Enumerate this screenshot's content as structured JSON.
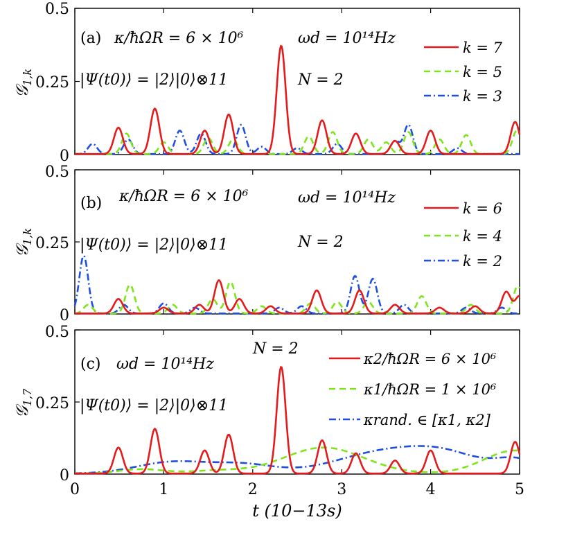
{
  "colors": {
    "red": "#e41a1c",
    "green": "#7ee51a",
    "blue": "#1f4fe0"
  },
  "x_axis": {
    "label": "t (10^{-13}s)",
    "label_text": "t (10−13s)",
    "ticks": [
      "0",
      "1",
      "2",
      "3",
      "4",
      "5"
    ],
    "range": [
      0,
      5
    ]
  },
  "chart_data": [
    {
      "type": "line",
      "panel": "a",
      "ylabel": "G1,k",
      "ylim": [
        0,
        0.5
      ],
      "yticks": [
        "0",
        "0.25",
        "0.5"
      ],
      "annotations": [
        "(a)",
        "κ/ħΩR = 6 × 10⁶",
        "ωd = 10¹⁴Hz",
        "|Ψ(t0)⟩ = |2⟩|0⟩⊗11",
        "N = 2"
      ],
      "legend": [
        "k = 7",
        "k = 5",
        "k = 3"
      ],
      "series": [
        {
          "name": "k = 7",
          "color": "#e41a1c",
          "style": "solid",
          "peaks": [
            [
              0.49,
              0.09
            ],
            [
              0.9,
              0.155
            ],
            [
              1.46,
              0.08
            ],
            [
              1.73,
              0.135
            ],
            [
              2.32,
              0.37
            ],
            [
              2.78,
              0.115
            ],
            [
              3.16,
              0.07
            ],
            [
              3.6,
              0.045
            ],
            [
              4.0,
              0.08
            ],
            [
              4.95,
              0.11
            ]
          ]
        },
        {
          "name": "k = 5",
          "color": "#7ee51a",
          "style": "dashed",
          "peaks": [
            [
              0.58,
              0.07
            ],
            [
              1.0,
              0.04
            ],
            [
              1.5,
              0.055
            ],
            [
              1.78,
              0.05
            ],
            [
              2.63,
              0.06
            ],
            [
              2.9,
              0.075
            ],
            [
              3.3,
              0.05
            ],
            [
              3.5,
              0.04
            ],
            [
              3.75,
              0.075
            ],
            [
              4.1,
              0.05
            ],
            [
              4.4,
              0.065
            ],
            [
              4.97,
              0.08
            ]
          ]
        },
        {
          "name": "k = 3",
          "color": "#1f4fe0",
          "style": "dashdot",
          "peaks": [
            [
              0.2,
              0.035
            ],
            [
              0.6,
              0.05
            ],
            [
              1.18,
              0.08
            ],
            [
              1.42,
              0.07
            ],
            [
              1.87,
              0.1
            ],
            [
              2.1,
              0.025
            ],
            [
              2.5,
              0.02
            ],
            [
              2.95,
              0.035
            ],
            [
              3.6,
              0.045
            ],
            [
              3.75,
              0.1
            ],
            [
              4.3,
              0.02
            ]
          ]
        }
      ]
    },
    {
      "type": "line",
      "panel": "b",
      "ylabel": "G1,k",
      "ylim": [
        0,
        0.5
      ],
      "yticks": [
        "0",
        "0.25",
        "0.5"
      ],
      "annotations": [
        "(b)",
        "κ/ħΩR = 6 × 10⁶",
        "ωd = 10¹⁴Hz",
        "|Ψ(t0)⟩ = |2⟩|0⟩⊗11",
        "N = 2"
      ],
      "legend": [
        "k = 6",
        "k = 4",
        "k = 2"
      ],
      "series": [
        {
          "name": "k = 6",
          "color": "#e41a1c",
          "style": "solid",
          "peaks": [
            [
              0.49,
              0.05
            ],
            [
              1.0,
              0.02
            ],
            [
              1.4,
              0.03
            ],
            [
              1.62,
              0.115
            ],
            [
              1.85,
              0.05
            ],
            [
              2.2,
              0.025
            ],
            [
              2.72,
              0.08
            ],
            [
              3.2,
              0.08
            ],
            [
              3.6,
              0.03
            ],
            [
              4.1,
              0.02
            ],
            [
              4.5,
              0.025
            ],
            [
              4.85,
              0.075
            ],
            [
              5.0,
              0.06
            ]
          ]
        },
        {
          "name": "k = 4",
          "color": "#7ee51a",
          "style": "dashed",
          "peaks": [
            [
              0.15,
              0.03
            ],
            [
              0.62,
              0.1
            ],
            [
              1.1,
              0.03
            ],
            [
              1.55,
              0.05
            ],
            [
              1.75,
              0.11
            ],
            [
              2.1,
              0.025
            ],
            [
              2.65,
              0.035
            ],
            [
              2.95,
              0.04
            ],
            [
              3.3,
              0.04
            ],
            [
              3.9,
              0.06
            ],
            [
              4.45,
              0.03
            ],
            [
              4.98,
              0.095
            ]
          ]
        },
        {
          "name": "k = 2",
          "color": "#1f4fe0",
          "style": "dashdot",
          "peaks": [
            [
              0.1,
              0.2
            ],
            [
              0.55,
              0.03
            ],
            [
              1.0,
              0.035
            ],
            [
              1.35,
              0.02
            ],
            [
              2.3,
              0.02
            ],
            [
              2.55,
              0.025
            ],
            [
              3.15,
              0.13
            ],
            [
              3.35,
              0.12
            ],
            [
              3.7,
              0.03
            ],
            [
              4.4,
              0.02
            ],
            [
              4.8,
              0.02
            ]
          ]
        }
      ]
    },
    {
      "type": "line",
      "panel": "c",
      "ylabel": "G1,7",
      "ylim": [
        0,
        0.5
      ],
      "yticks": [
        "0",
        "0.25",
        "0.5"
      ],
      "annotations": [
        "(c)",
        "ωd = 10¹⁴Hz",
        "|Ψ(t0)⟩ = |2⟩|0⟩⊗11",
        "N = 2"
      ],
      "legend": [
        "κ2/ħΩR = 6 × 10⁶",
        "κ1/ħΩR = 1 × 10⁶",
        "κrand. ∈ [κ1, κ2]"
      ],
      "series": [
        {
          "name": "κ2/ħΩR = 6 × 10⁶",
          "color": "#e41a1c",
          "style": "solid",
          "peaks": [
            [
              0.49,
              0.09
            ],
            [
              0.9,
              0.155
            ],
            [
              1.46,
              0.08
            ],
            [
              1.73,
              0.135
            ],
            [
              2.32,
              0.37
            ],
            [
              2.78,
              0.115
            ],
            [
              3.16,
              0.07
            ],
            [
              3.6,
              0.045
            ],
            [
              4.0,
              0.08
            ],
            [
              4.95,
              0.11
            ]
          ]
        },
        {
          "name": "κ1/ħΩR = 1 × 10⁶",
          "color": "#7ee51a",
          "style": "dashed",
          "broad": [
            [
              0.75,
              0.015,
              0.25
            ],
            [
              1.6,
              0.01,
              0.3
            ],
            [
              2.8,
              0.09,
              0.45
            ],
            [
              4.95,
              0.08,
              0.35
            ]
          ]
        },
        {
          "name": "κrand. ∈ [κ1, κ2]",
          "color": "#1f4fe0",
          "style": "dashdot",
          "broad": [
            [
              1.1,
              0.04,
              0.4
            ],
            [
              1.9,
              0.03,
              0.35
            ],
            [
              3.5,
              0.075,
              0.55
            ],
            [
              4.2,
              0.05,
              0.4
            ],
            [
              4.98,
              0.045,
              0.25
            ]
          ]
        }
      ]
    }
  ]
}
